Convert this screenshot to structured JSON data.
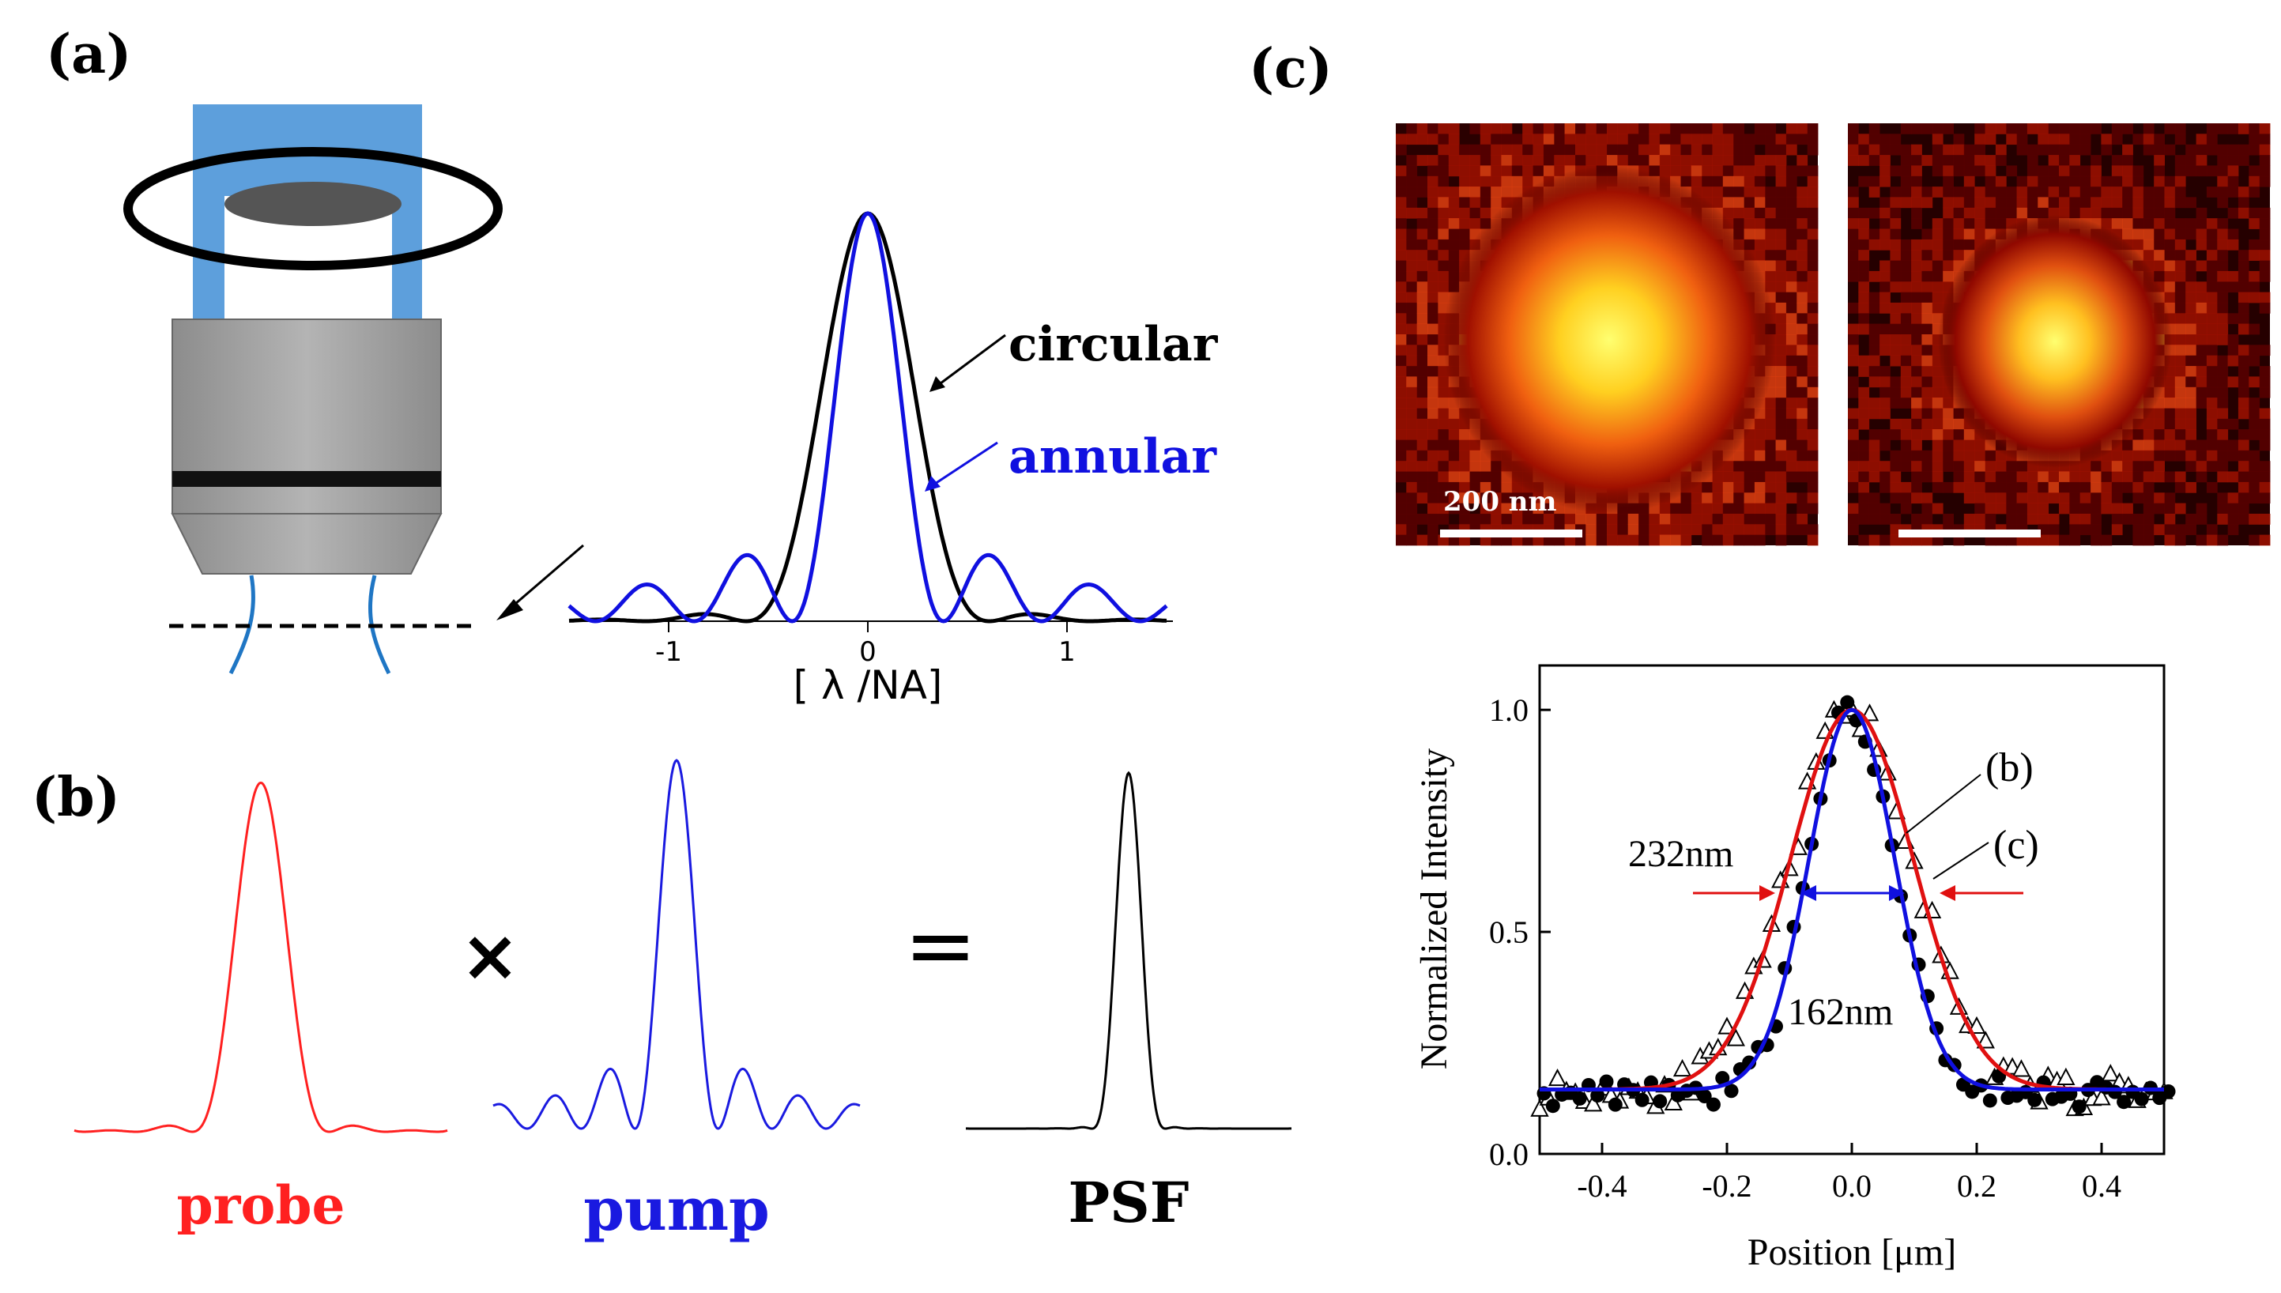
{
  "panels": {
    "a": "(a)",
    "b": "(b)",
    "c": "(c)"
  },
  "panel_a": {
    "profile_chart": {
      "type": "line",
      "xlabel": "[ λ /NA]",
      "xlim": [
        -1.5,
        1.5
      ],
      "xticks": [
        {
          "value": -1,
          "label": "-1"
        },
        {
          "value": 0,
          "label": "0"
        },
        {
          "value": 1,
          "label": "1"
        }
      ],
      "series": [
        {
          "name": "circular",
          "label": "circular",
          "color": "#000000"
        },
        {
          "name": "annular",
          "label": "annular",
          "color": "#1010e0"
        }
      ]
    }
  },
  "panel_b": {
    "probe_label": "probe",
    "pump_label": "pump",
    "psf_label": "PSF",
    "times": "×",
    "equals": "=",
    "colors": {
      "probe": "#ff2020",
      "pump": "#1a1ae0",
      "psf": "#000000"
    }
  },
  "panel_c": {
    "scale_bar_label": "200 nm"
  },
  "chart_data": {
    "type": "scatter",
    "xlabel": "Position [μm]",
    "ylabel": "Normalized Intensity",
    "xlim": [
      -0.5,
      0.5
    ],
    "ylim": [
      0.0,
      1.1
    ],
    "xticks": [
      {
        "value": -0.4,
        "label": "-0.4"
      },
      {
        "value": -0.2,
        "label": "-0.2"
      },
      {
        "value": 0.0,
        "label": "0.0"
      },
      {
        "value": 0.2,
        "label": "0.2"
      },
      {
        "value": 0.4,
        "label": "0.4"
      }
    ],
    "yticks": [
      {
        "value": 0.0,
        "label": "0.0"
      },
      {
        "value": 0.5,
        "label": "0.5"
      },
      {
        "value": 1.0,
        "label": "1.0"
      }
    ],
    "series": [
      {
        "name": "(b) data",
        "marker": "open-triangle",
        "fwhm_um": 0.232,
        "baseline": 0.14
      },
      {
        "name": "(c) data",
        "marker": "filled-circle",
        "fwhm_um": 0.162,
        "baseline": 0.14
      },
      {
        "name": "(b) fit",
        "color": "#e01010",
        "fwhm_um": 0.232,
        "baseline": 0.145
      },
      {
        "name": "(c) fit",
        "color": "#1010e0",
        "fwhm_um": 0.162,
        "baseline": 0.145
      }
    ],
    "annotations": [
      {
        "text": "232nm"
      },
      {
        "text": "162nm"
      },
      {
        "text": "(b)"
      },
      {
        "text": "(c)"
      }
    ]
  }
}
